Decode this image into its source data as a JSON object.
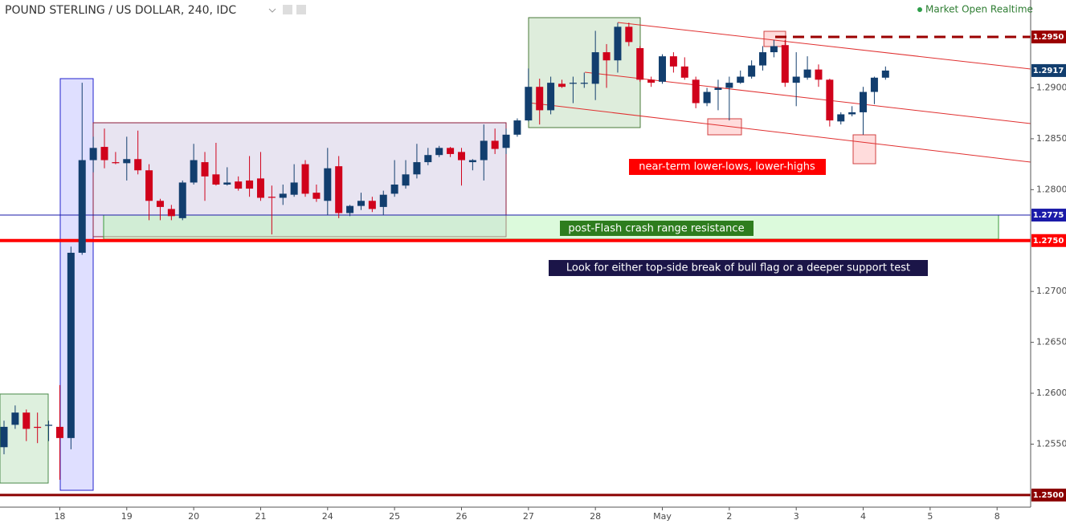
{
  "header": {
    "symbol": "POUND STERLING / US DOLLAR, 240, IDC",
    "status": "Market Open Realtime"
  },
  "chart_data": {
    "type": "candlestick",
    "categories": [
      null,
      null,
      null,
      null,
      null,
      "18",
      null,
      null,
      null,
      null,
      null,
      "19",
      null,
      null,
      null,
      null,
      null,
      "20",
      null,
      null,
      null,
      null,
      null,
      "21",
      null,
      null,
      null,
      null,
      null,
      "24",
      null,
      null,
      null,
      null,
      null,
      "25",
      null,
      null,
      null,
      null,
      null,
      "26",
      null,
      null,
      null,
      null,
      null,
      "27",
      null,
      null,
      null,
      null,
      null,
      "28",
      null,
      null,
      null,
      null,
      null,
      "May",
      null,
      null,
      null,
      null,
      null,
      "2",
      null,
      null,
      null,
      null,
      null,
      "3",
      null,
      null,
      null,
      null,
      null,
      "4",
      null,
      null,
      null,
      null,
      null,
      "5",
      null,
      null,
      null,
      null,
      null,
      "8",
      null,
      null,
      null
    ],
    "open": [
      1.2547,
      1.2569,
      1.2581,
      1.2567,
      1.2568,
      1.2567,
      1.2556,
      1.2738,
      1.2829,
      1.2842,
      1.2827,
      1.2826,
      1.283,
      1.2819,
      1.2789,
      1.2781,
      1.2772,
      1.2807,
      1.2827,
      1.2815,
      1.2805,
      1.2808,
      1.2809,
      1.2811,
      1.2793,
      1.2792,
      1.2795,
      1.2825,
      1.2797,
      1.2789,
      1.2823,
      1.2777,
      1.2784,
      1.2789,
      1.2783,
      1.2796,
      1.2804,
      1.2815,
      1.2827,
      1.2834,
      1.2841,
      1.2837,
      1.2827,
      1.2829,
      1.2848,
      1.2841,
      1.2854,
      1.2868,
      1.2901,
      1.2878,
      1.2904,
      1.2904,
      1.2904,
      1.2904,
      1.2935,
      1.2927,
      1.296,
      1.2939,
      1.2908,
      1.2906,
      1.2931,
      1.2921,
      1.2908,
      1.2885,
      1.2898,
      1.29,
      1.2905,
      1.2911,
      1.2922,
      1.2935,
      1.2942,
      1.2905,
      1.291,
      1.2918,
      1.2908,
      1.2867,
      1.2874,
      1.2876,
      1.2896,
      1.291,
      null,
      null,
      null,
      null,
      null,
      null,
      null,
      null,
      null,
      null,
      null,
      null,
      null
    ],
    "high": [
      1.2573,
      1.2588,
      1.2584,
      1.2581,
      1.2573,
      1.2608,
      1.2744,
      1.2905,
      1.2852,
      1.286,
      1.2837,
      1.2852,
      1.2858,
      1.2825,
      1.2791,
      1.2785,
      1.2809,
      1.2845,
      1.2837,
      1.2846,
      1.2822,
      1.2813,
      1.2833,
      1.2837,
      1.2804,
      1.2805,
      1.2825,
      1.2829,
      1.2805,
      1.2841,
      1.2833,
      1.2785,
      1.2797,
      1.2793,
      1.2799,
      1.2829,
      1.2829,
      1.2845,
      1.2841,
      1.2843,
      1.2842,
      1.2841,
      1.283,
      1.2864,
      1.286,
      1.286,
      1.287,
      1.2919,
      1.2909,
      1.2911,
      1.2908,
      1.2911,
      1.2915,
      1.2956,
      1.2943,
      1.2964,
      1.2964,
      1.2941,
      1.2911,
      1.2933,
      1.2935,
      1.293,
      1.2911,
      1.29,
      1.2908,
      1.2911,
      1.2917,
      1.2927,
      1.2941,
      1.2947,
      1.2947,
      1.2935,
      1.2931,
      1.2923,
      1.2909,
      1.2876,
      1.2882,
      1.2901,
      1.2911,
      1.2921,
      null,
      null,
      null,
      null,
      null,
      null,
      null,
      null,
      null,
      null,
      null,
      null,
      null
    ],
    "low": [
      1.254,
      1.2565,
      1.2553,
      1.2551,
      1.2553,
      1.2515,
      1.2545,
      1.2736,
      1.2817,
      1.2821,
      1.2825,
      1.2809,
      1.2815,
      1.277,
      1.277,
      1.277,
      1.277,
      1.2805,
      1.2789,
      1.2804,
      1.2804,
      1.2799,
      1.2793,
      1.2789,
      1.2756,
      1.2785,
      1.2793,
      1.2793,
      1.2788,
      1.2775,
      1.2772,
      1.2774,
      1.278,
      1.2778,
      1.2775,
      1.2793,
      1.2801,
      1.2811,
      1.2824,
      1.2832,
      1.2832,
      1.2804,
      1.2819,
      1.2809,
      1.2835,
      1.2835,
      1.2852,
      1.2867,
      1.2864,
      1.2874,
      1.29,
      1.2885,
      1.29,
      1.2888,
      1.29,
      1.2915,
      1.2941,
      1.2906,
      1.2901,
      1.2904,
      1.2915,
      1.2908,
      1.288,
      1.2882,
      1.2878,
      1.2868,
      1.2904,
      1.2909,
      1.2917,
      1.293,
      1.2901,
      1.2882,
      1.2908,
      1.2901,
      1.2862,
      1.2864,
      1.2872,
      1.2854,
      1.2884,
      1.2908,
      null,
      null,
      null,
      null,
      null,
      null,
      null,
      null,
      null,
      null,
      null,
      null,
      null
    ],
    "close": [
      1.2567,
      1.2581,
      1.2565,
      1.2566,
      1.2569,
      1.2556,
      1.2738,
      1.2829,
      1.2841,
      1.2829,
      1.2826,
      1.283,
      1.2819,
      1.2789,
      1.2783,
      1.2774,
      1.2807,
      1.2829,
      1.2813,
      1.2805,
      1.2807,
      1.2801,
      1.2801,
      1.2792,
      1.2792,
      1.2796,
      1.2807,
      1.2796,
      1.2791,
      1.2821,
      1.2777,
      1.2784,
      1.2789,
      1.2781,
      1.2795,
      1.2805,
      1.2815,
      1.2827,
      1.2834,
      1.2841,
      1.2835,
      1.2829,
      1.2829,
      1.2848,
      1.284,
      1.2854,
      1.2868,
      1.2901,
      1.2878,
      1.2905,
      1.2901,
      1.2905,
      1.2905,
      1.2935,
      1.2927,
      1.296,
      1.2945,
      1.2908,
      1.2905,
      1.2931,
      1.2921,
      1.291,
      1.2885,
      1.2896,
      1.29,
      1.2905,
      1.2911,
      1.2922,
      1.2935,
      1.2941,
      1.2905,
      1.2911,
      1.2918,
      1.2908,
      1.2868,
      1.2874,
      1.2876,
      1.2896,
      1.291,
      1.2917,
      null,
      null,
      null,
      null,
      null,
      null,
      null,
      null,
      null,
      null,
      null,
      null,
      null
    ],
    "up_color": "#123e6e",
    "down_color": "#d0021b",
    "ylim": [
      1.24881,
      1.29863
    ],
    "yticks": [
      {
        "value": 1.255,
        "label": "1.2550"
      },
      {
        "value": 1.26,
        "label": "1.2600"
      },
      {
        "value": 1.265,
        "label": "1.2650"
      },
      {
        "value": 1.27,
        "label": "1.2700"
      },
      {
        "value": 1.28,
        "label": "1.2800"
      },
      {
        "value": 1.285,
        "label": "1.2850"
      },
      {
        "value": 1.29,
        "label": "1.2900"
      }
    ],
    "grid": false,
    "price_lines": [
      {
        "value": 1.295,
        "label": "1.2950",
        "color": "#9b0000",
        "style": "dashed"
      },
      {
        "value": 1.2917,
        "label": "1.2917",
        "color": "#123e6e",
        "style": "none"
      },
      {
        "value": 1.2775,
        "label": "1.2775",
        "color": "#1a1aa8",
        "style": "thin"
      },
      {
        "value": 1.275,
        "label": "1.2750",
        "color": "#ff0000",
        "style": "thick"
      },
      {
        "value": 1.25,
        "label": "1.2500",
        "color": "#8b0000",
        "style": "solid"
      }
    ],
    "annotations": [
      "near-term lower-lows, lower-highs",
      "post-Flash crash range resistance",
      "Look for either top-side break of bull flag or a deeper support test"
    ]
  }
}
